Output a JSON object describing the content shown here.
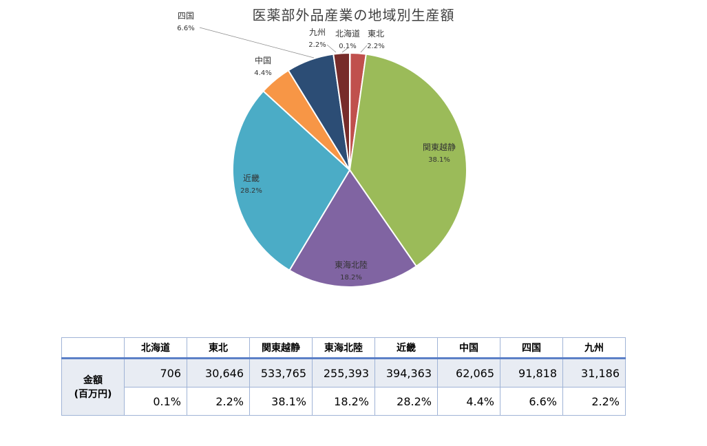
{
  "chart_data": {
    "type": "pie",
    "title": "医薬部外品産業の地域別生産額",
    "slices": [
      {
        "name": "北海道",
        "value": 706,
        "label": "0.1%",
        "color": "#4472c4"
      },
      {
        "name": "東北",
        "value": 30646,
        "label": "2.2%",
        "color": "#c0504d"
      },
      {
        "name": "関東越静",
        "value": 533765,
        "label": "38.1%",
        "color": "#9bbb59"
      },
      {
        "name": "東海北陸",
        "value": 255393,
        "label": "18.2%",
        "color": "#8064a2"
      },
      {
        "name": "近畿",
        "value": 394363,
        "label": "28.2%",
        "color": "#4bacc6"
      },
      {
        "name": "中国",
        "value": 62065,
        "label": "4.4%",
        "color": "#f79646"
      },
      {
        "name": "四国",
        "value": 91818,
        "label": "6.6%",
        "color": "#2c4d75"
      },
      {
        "name": "九州",
        "value": 31186,
        "label": "2.2%",
        "color": "#772c2a"
      }
    ]
  },
  "table": {
    "row_header_line1": "金額",
    "row_header_line2": "(百万円)",
    "columns": [
      "北海道",
      "東北",
      "関東越静",
      "東海北陸",
      "近畿",
      "中国",
      "四国",
      "九州"
    ],
    "amounts": [
      "706",
      "30,646",
      "533,765",
      "255,393",
      "394,363",
      "62,065",
      "91,818",
      "31,186"
    ],
    "percents": [
      "0.1%",
      "2.2%",
      "38.1%",
      "18.2%",
      "28.2%",
      "4.4%",
      "6.6%",
      "2.2%"
    ]
  }
}
